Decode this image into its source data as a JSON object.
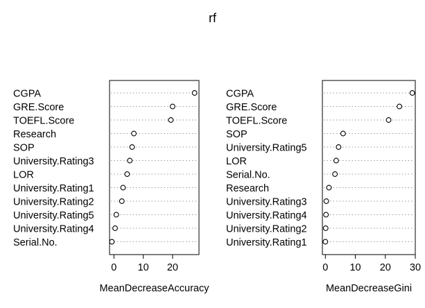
{
  "title": "rf",
  "chart_data": [
    {
      "type": "dotchart",
      "xlabel": "MeanDecreaseAccuracy",
      "xlim": [
        -1.5,
        29
      ],
      "xticks": [
        0,
        10,
        20
      ],
      "grid": "dotted-horizontal",
      "categories": [
        "CGPA",
        "GRE.Score",
        "TOEFL.Score",
        "Research",
        "SOP",
        "University.Rating3",
        "LOR",
        "University.Rating1",
        "University.Rating2",
        "University.Rating5",
        "University.Rating4",
        "Serial.No."
      ],
      "values": [
        27.5,
        20.0,
        19.4,
        6.8,
        6.2,
        5.4,
        4.5,
        3.1,
        2.7,
        0.8,
        0.4,
        -0.7
      ]
    },
    {
      "type": "dotchart",
      "xlabel": "MeanDecreaseGini",
      "xlim": [
        -1,
        30
      ],
      "xticks": [
        0,
        10,
        20,
        30
      ],
      "grid": "dotted-horizontal",
      "categories": [
        "CGPA",
        "GRE.Score",
        "TOEFL.Score",
        "SOP",
        "University.Rating5",
        "LOR",
        "Serial.No.",
        "Research",
        "University.Rating3",
        "University.Rating4",
        "University.Rating2",
        "University.Rating1"
      ],
      "values": [
        29.0,
        24.7,
        21.1,
        5.9,
        4.4,
        3.6,
        3.2,
        1.2,
        0.3,
        0.2,
        0.1,
        0.0
      ]
    }
  ]
}
